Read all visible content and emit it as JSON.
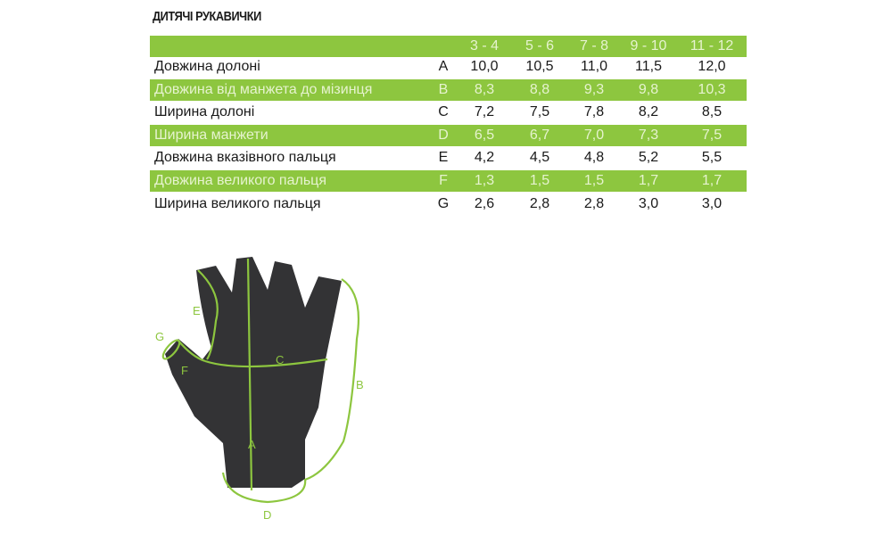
{
  "title": "ДИТЯЧІ РУКАВИЧКИ",
  "accent_color": "#8dc63f",
  "table": {
    "sizes": [
      "3 - 4",
      "5 - 6",
      "7 - 8",
      "9 - 10",
      "11 - 12"
    ],
    "rows": [
      {
        "label": "Довжина долоні",
        "letter": "A",
        "values": [
          "10,0",
          "10,5",
          "11,0",
          "11,5",
          "12,0"
        ]
      },
      {
        "label": "Довжина від манжета до мізинця",
        "letter": "B",
        "values": [
          "8,3",
          "8,8",
          "9,3",
          "9,8",
          "10,3"
        ]
      },
      {
        "label": "Ширина долоні",
        "letter": "C",
        "values": [
          "7,2",
          "7,5",
          "7,8",
          "8,2",
          "8,5"
        ]
      },
      {
        "label": "Ширина манжети",
        "letter": "D",
        "values": [
          "6,5",
          "6,7",
          "7,0",
          "7,3",
          "7,5"
        ]
      },
      {
        "label": "Довжина вказівного пальця",
        "letter": "E",
        "values": [
          "4,2",
          "4,5",
          "4,8",
          "5,2",
          "5,5"
        ]
      },
      {
        "label": "Довжина великого пальця",
        "letter": "F",
        "values": [
          "1,3",
          "1,5",
          "1,5",
          "1,7",
          "1,7"
        ]
      },
      {
        "label": "Ширина великого пальця",
        "letter": "G",
        "values": [
          "2,6",
          "2,8",
          "2,8",
          "3,0",
          "3,0"
        ]
      }
    ]
  },
  "diagram": {
    "labels": {
      "A": "A",
      "B": "B",
      "C": "C",
      "D": "D",
      "E": "E",
      "F": "F",
      "G": "G"
    }
  }
}
